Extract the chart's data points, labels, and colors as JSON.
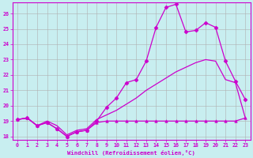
{
  "xlabel": "Windchill (Refroidissement éolien,°C)",
  "background_color": "#c8eef0",
  "grid_color": "#b0b0b0",
  "line_color": "#cc00cc",
  "xlim": [
    -0.5,
    23.5
  ],
  "ylim": [
    17.8,
    26.7
  ],
  "yticks": [
    18,
    19,
    20,
    21,
    22,
    23,
    24,
    25,
    26
  ],
  "xticks": [
    0,
    1,
    2,
    3,
    4,
    5,
    6,
    7,
    8,
    9,
    10,
    11,
    12,
    13,
    14,
    15,
    16,
    17,
    18,
    19,
    20,
    21,
    22,
    23
  ],
  "series_flat": {
    "x": [
      0,
      1,
      2,
      3,
      4,
      5,
      6,
      7,
      8,
      9,
      10,
      11,
      12,
      13,
      14,
      15,
      16,
      17,
      18,
      19,
      20,
      21,
      22,
      23
    ],
    "y": [
      19.1,
      19.2,
      18.7,
      18.9,
      18.5,
      18.0,
      18.3,
      18.4,
      18.9,
      19.0,
      19.0,
      19.0,
      19.0,
      19.0,
      19.0,
      19.0,
      19.0,
      19.0,
      19.0,
      19.0,
      19.0,
      19.0,
      19.0,
      19.2
    ],
    "marker": "^",
    "markersize": 2.5
  },
  "series_peaked": {
    "x": [
      0,
      1,
      2,
      3,
      4,
      5,
      6,
      7,
      8,
      9,
      10,
      11,
      12,
      13,
      14,
      15,
      16,
      17,
      18,
      19,
      20,
      21,
      22,
      23
    ],
    "y": [
      19.1,
      19.2,
      18.7,
      18.9,
      18.5,
      18.0,
      18.3,
      18.4,
      19.0,
      19.9,
      20.5,
      21.5,
      21.7,
      22.9,
      25.1,
      26.4,
      26.6,
      24.8,
      24.9,
      25.4,
      25.1,
      22.9,
      21.6,
      20.4
    ],
    "marker": "D",
    "markersize": 2.5
  },
  "series_diagonal": {
    "x": [
      0,
      1,
      2,
      3,
      4,
      5,
      6,
      7,
      8,
      9,
      10,
      11,
      12,
      13,
      14,
      15,
      16,
      17,
      18,
      19,
      20,
      21,
      22,
      23
    ],
    "y": [
      19.1,
      19.2,
      18.7,
      19.0,
      18.7,
      18.1,
      18.4,
      18.5,
      19.1,
      19.4,
      19.7,
      20.1,
      20.5,
      21.0,
      21.4,
      21.8,
      22.2,
      22.5,
      22.8,
      23.0,
      22.9,
      21.7,
      21.5,
      19.2
    ],
    "marker": null,
    "markersize": 0
  }
}
